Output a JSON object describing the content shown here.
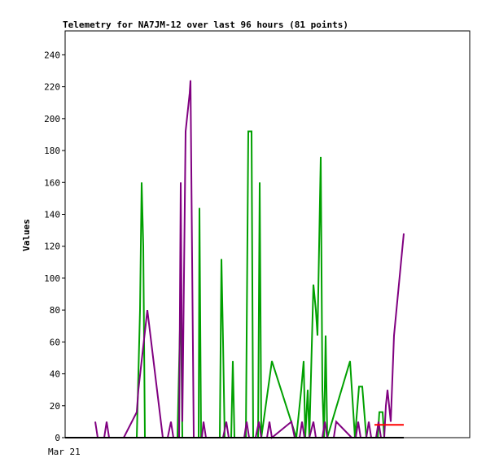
{
  "chart_data": {
    "type": "line",
    "title": "Telemetry for NA7JM-12 over last 96 hours (81 points)",
    "ylabel": "Values",
    "xlabel": "",
    "x_tick_labels": [
      "Mar 21"
    ],
    "ylim": [
      0,
      255
    ],
    "y_ticks": [
      0,
      20,
      40,
      60,
      80,
      100,
      120,
      140,
      160,
      180,
      200,
      220,
      240
    ],
    "grid": false,
    "legend": "none",
    "series": [
      {
        "color": "#00a000",
        "points": [
          [
            118,
            0
          ],
          [
            168,
            0
          ],
          [
            172,
            80
          ],
          [
            174,
            160
          ],
          [
            176,
            120
          ],
          [
            178,
            0
          ],
          [
            218,
            0
          ],
          [
            222,
            90
          ],
          [
            224,
            0
          ],
          [
            244,
            0
          ],
          [
            245,
            144
          ],
          [
            247,
            0
          ],
          [
            270,
            0
          ],
          [
            272,
            112
          ],
          [
            274,
            60
          ],
          [
            276,
            0
          ],
          [
            284,
            0
          ],
          [
            286,
            48
          ],
          [
            288,
            0
          ],
          [
            302,
            0
          ],
          [
            305,
            192
          ],
          [
            309,
            192
          ],
          [
            311,
            0
          ],
          [
            317,
            0
          ],
          [
            319,
            160
          ],
          [
            321,
            0
          ],
          [
            334,
            48
          ],
          [
            364,
            0
          ],
          [
            370,
            30
          ],
          [
            373,
            48
          ],
          [
            375,
            0
          ],
          [
            378,
            30
          ],
          [
            380,
            0
          ],
          [
            385,
            96
          ],
          [
            388,
            80
          ],
          [
            390,
            64
          ],
          [
            392,
            120
          ],
          [
            394,
            176
          ],
          [
            396,
            30
          ],
          [
            398,
            0
          ],
          [
            400,
            64
          ],
          [
            402,
            0
          ],
          [
            430,
            48
          ],
          [
            436,
            0
          ],
          [
            441,
            32
          ],
          [
            445,
            32
          ],
          [
            450,
            0
          ],
          [
            464,
            0
          ],
          [
            466,
            16
          ],
          [
            470,
            16
          ],
          [
            472,
            0
          ],
          [
            496,
            0
          ]
        ]
      },
      {
        "color": "#800080",
        "points": [
          [
            117,
            10
          ],
          [
            120,
            0
          ],
          [
            128,
            0
          ],
          [
            131,
            10
          ],
          [
            134,
            0
          ],
          [
            152,
            0
          ],
          [
            168,
            16
          ],
          [
            170,
            30
          ],
          [
            181,
            80
          ],
          [
            200,
            0
          ],
          [
            206,
            0
          ],
          [
            210,
            10
          ],
          [
            213,
            0
          ],
          [
            220,
            0
          ],
          [
            222,
            160
          ],
          [
            224,
            10
          ],
          [
            228,
            192
          ],
          [
            233,
            216
          ],
          [
            234,
            224
          ],
          [
            238,
            0
          ],
          [
            248,
            0
          ],
          [
            250,
            10
          ],
          [
            253,
            0
          ],
          [
            274,
            0
          ],
          [
            278,
            10
          ],
          [
            281,
            0
          ],
          [
            300,
            0
          ],
          [
            303,
            10
          ],
          [
            306,
            0
          ],
          [
            314,
            0
          ],
          [
            318,
            10
          ],
          [
            321,
            0
          ],
          [
            328,
            0
          ],
          [
            331,
            10
          ],
          [
            334,
            0
          ],
          [
            358,
            10
          ],
          [
            362,
            0
          ],
          [
            368,
            0
          ],
          [
            371,
            10
          ],
          [
            374,
            0
          ],
          [
            380,
            0
          ],
          [
            385,
            10
          ],
          [
            388,
            0
          ],
          [
            396,
            0
          ],
          [
            399,
            10
          ],
          [
            402,
            0
          ],
          [
            410,
            0
          ],
          [
            413,
            10
          ],
          [
            432,
            0
          ],
          [
            437,
            0
          ],
          [
            440,
            10
          ],
          [
            443,
            0
          ],
          [
            450,
            0
          ],
          [
            453,
            10
          ],
          [
            456,
            0
          ],
          [
            462,
            0
          ],
          [
            465,
            10
          ],
          [
            468,
            0
          ],
          [
            472,
            0
          ],
          [
            474,
            20
          ],
          [
            476,
            30
          ],
          [
            478,
            20
          ],
          [
            480,
            10
          ],
          [
            484,
            64
          ],
          [
            496,
            128
          ]
        ]
      },
      {
        "color": "#ff0000",
        "points": [
          [
            460,
            8
          ],
          [
            496,
            8
          ]
        ]
      },
      {
        "color": "#000000",
        "points": [
          [
            80,
            0
          ],
          [
            496,
            0
          ]
        ]
      }
    ]
  }
}
